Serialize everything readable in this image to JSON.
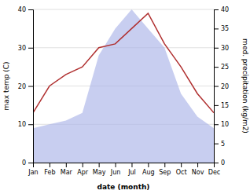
{
  "chart_data": {
    "type": "line",
    "categories": [
      "Jan",
      "Feb",
      "Mar",
      "Apr",
      "May",
      "Jun",
      "Jul",
      "Aug",
      "Sep",
      "Oct",
      "Nov",
      "Dec"
    ],
    "xlabel": "date (month)",
    "ylabel": "max temp (C)",
    "y2label": "med. precipitation (kg/m2)",
    "ylim": [
      0,
      40
    ],
    "yticks": [
      0,
      10,
      20,
      30,
      40
    ],
    "y2lim": [
      0,
      40
    ],
    "y2ticks": [
      0,
      5,
      10,
      15,
      20,
      25,
      30,
      35,
      40
    ],
    "grid": true,
    "series": [
      {
        "type": "area",
        "axis": "y2",
        "color": "#aab4e8",
        "values": [
          9,
          10,
          11,
          13,
          28,
          35,
          40,
          35,
          30,
          18,
          12,
          9
        ]
      },
      {
        "type": "line",
        "color": "#b03030",
        "values": [
          13,
          20,
          23,
          25,
          30,
          31,
          35,
          39,
          31,
          25,
          18,
          13
        ]
      }
    ]
  }
}
